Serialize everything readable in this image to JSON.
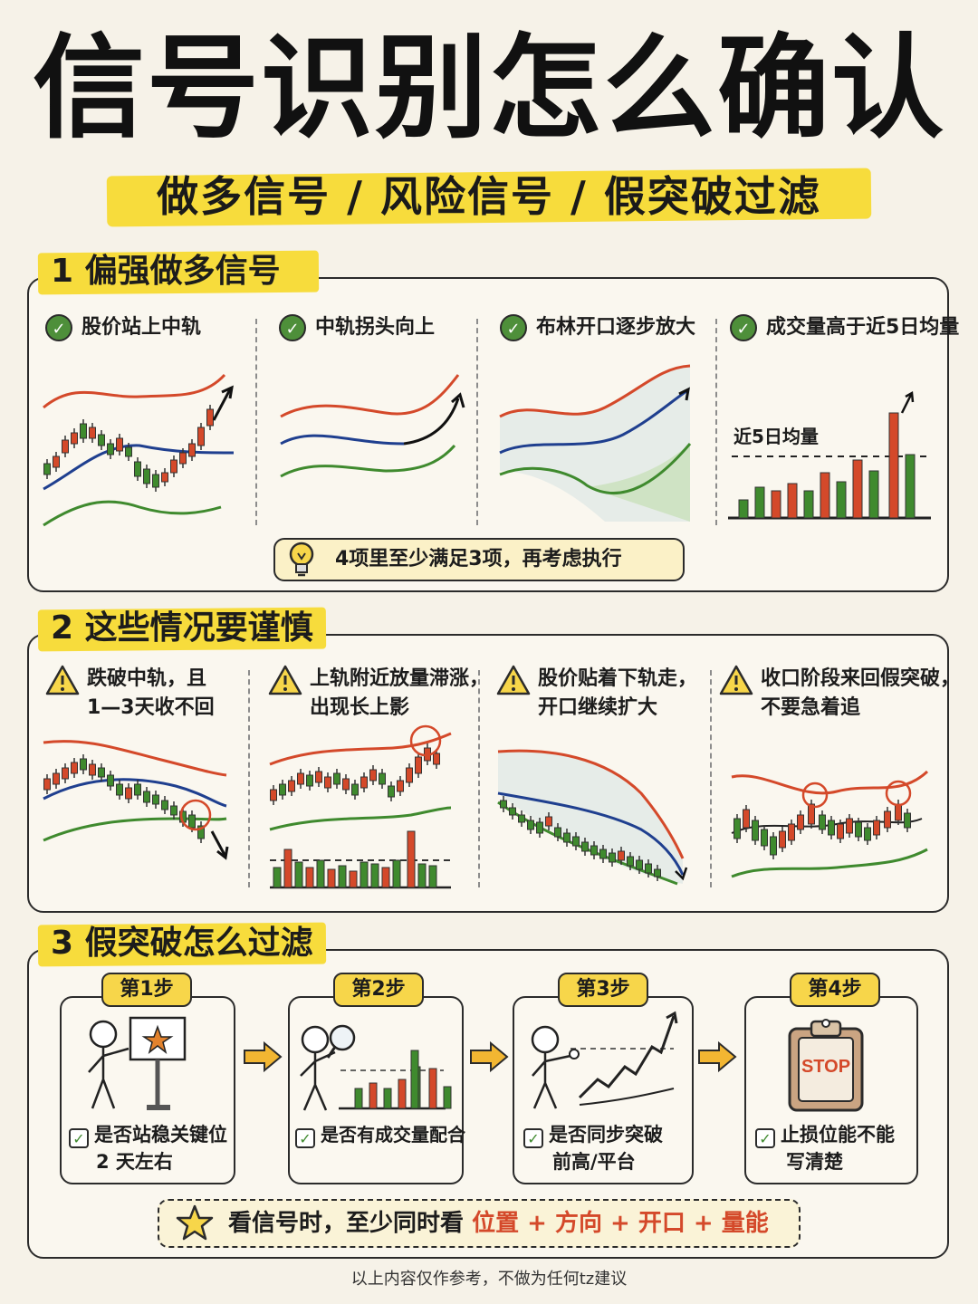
{
  "title": "信号识别怎么确认",
  "subtitle": "做多信号 / 风险信号 / 假突破过滤",
  "section1": {
    "heading": "1 偏强做多信号",
    "conditions": [
      "股价站上中轨",
      "中轨拐头向上",
      "布林开口逐步放大",
      "成交量高于近5日均量"
    ],
    "volume_avg_label": "近5日均量",
    "tip": "4项里至少满足3项，再考虑执行"
  },
  "section2": {
    "heading": "2 这些情况要谨慎",
    "warnings": [
      {
        "line1": "跌破中轨，且",
        "line2": "1—3天收不回"
      },
      {
        "line1": "上轨附近放量滞涨，",
        "line2": "出现长上影"
      },
      {
        "line1": "股价贴着下轨走，",
        "line2": "开口继续扩大"
      },
      {
        "line1": "收口阶段来回假突破，",
        "line2": "不要急着追"
      }
    ]
  },
  "section3": {
    "heading": "3 假突破怎么过滤",
    "steps": [
      {
        "tag": "第1步",
        "line1": "是否站稳关键位",
        "line2": "2 天左右"
      },
      {
        "tag": "第2步",
        "line1": "是否有成交量配合",
        "line2": ""
      },
      {
        "tag": "第3步",
        "line1": "是否同步突破",
        "line2": "前高/平台"
      },
      {
        "tag": "第4步",
        "line1": "止损位能不能",
        "line2": "写清楚"
      }
    ],
    "stop_sign": "STOP",
    "note_prefix": "看信号时，至少同时看",
    "note_highlight": "位置 + 方向 + 开口 + 量能"
  },
  "footer": "以上内容仅作参考，不做为任何tz建议",
  "colors": {
    "accent_yellow": "#f7dc3c",
    "up_red": "#d4492a",
    "down_green": "#3f8a2e",
    "mid_blue": "#1f3f8f"
  }
}
